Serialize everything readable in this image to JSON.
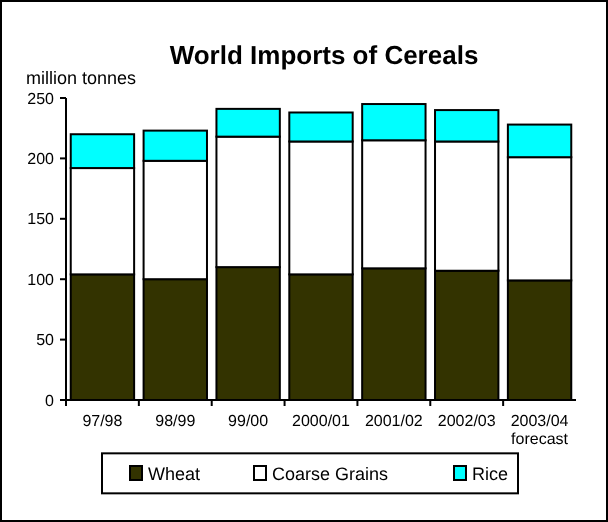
{
  "chart_data": {
    "type": "bar",
    "title": "World Imports of Cereals",
    "ylabel": "million tonnes",
    "categories": [
      "97/98",
      "98/99",
      "99/00",
      "2000/01",
      "2001/02",
      "2002/03",
      "2003/04\nforecast"
    ],
    "series": [
      {
        "name": "Wheat",
        "color": "#333300",
        "values": [
          104,
          100,
          110,
          104,
          109,
          107,
          99
        ]
      },
      {
        "name": "Coarse Grains",
        "color": "#ffffff",
        "values": [
          88,
          98,
          108,
          110,
          106,
          107,
          102
        ]
      },
      {
        "name": "Rice",
        "color": "#00ffff",
        "values": [
          28,
          25,
          23,
          24,
          30,
          26,
          27
        ]
      }
    ],
    "stacked": true,
    "ylim": [
      0,
      250
    ],
    "yticks": [
      0,
      50,
      100,
      150,
      200,
      250
    ],
    "grid": false,
    "legend": "bottom"
  }
}
